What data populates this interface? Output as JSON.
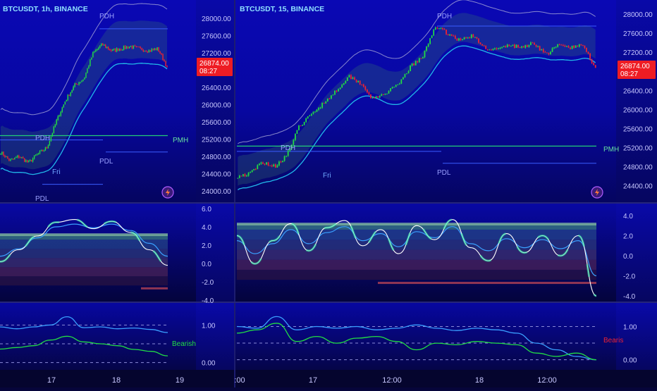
{
  "colors": {
    "background_top": "#0a08a8",
    "background_bottom": "#05053a",
    "bull": "#22dd44",
    "bear": "#ee2233",
    "basis": "#22b8e8",
    "guide": "#3a5dff",
    "pmh": "#22cc77",
    "label": "#c8c8ff",
    "price_badge": "#ee1c24"
  },
  "panels": [
    {
      "id": "left",
      "symbol_label": "BTCUSDT, 1h, BINANCE",
      "price_badge": {
        "price": "26874.00",
        "countdown": "08:27"
      },
      "price_axis": {
        "ticks": [
          "28000.00",
          "27600.00",
          "27200.00",
          "26800.00",
          "26400.00",
          "26000.00",
          "25600.00",
          "25200.00",
          "24800.00",
          "24400.00",
          "24000.00"
        ]
      },
      "annotations": {
        "pdh": "PDH",
        "pmh": "PMH",
        "pdl_top": "PDL",
        "pdl_bottom": "PDL",
        "day": "Fri"
      },
      "oscillator_axis": {
        "ticks": [
          "6.0",
          "4.0",
          "2.0",
          "0.0",
          "-2.0",
          "-4.0"
        ]
      },
      "ratio_axis": {
        "ticks": [
          "1.00",
          "0.00"
        ]
      },
      "ratio_label": "Bearish",
      "time_axis": {
        "ticks": [
          "17",
          "18",
          "19"
        ]
      },
      "icon": "lightning-icon"
    },
    {
      "id": "right",
      "symbol_label": "BTCUSDT, 15, BINANCE",
      "price_badge": {
        "price": "26874.00",
        "countdown": "08:27"
      },
      "price_axis": {
        "ticks": [
          "28000.00",
          "27600.00",
          "27200.00",
          "26800.00",
          "26400.00",
          "26000.00",
          "25600.00",
          "25200.00",
          "24800.00",
          "24400.00"
        ]
      },
      "annotations": {
        "pdh_top": "PDH",
        "pdh_mid": "PDH",
        "pmh": "PMH",
        "pdl": "PDL",
        "day": "Fri"
      },
      "oscillator_axis": {
        "ticks": [
          "4.0",
          "2.0",
          "0.0",
          "-2.0",
          "-4.0"
        ]
      },
      "ratio_axis": {
        "ticks": [
          "1.00",
          "0.00"
        ]
      },
      "ratio_label": "Bearis",
      "time_axis": {
        "ticks": [
          ":00",
          "17",
          "12:00",
          "18",
          "12:00"
        ]
      },
      "icon": "lightning-icon"
    }
  ],
  "chart_data": [
    {
      "type": "candlestick",
      "title": "BTCUSDT, 1h, BINANCE",
      "ylim": [
        23800,
        28200
      ],
      "series": [
        {
          "name": "price (close, approx.)",
          "keypoints": [
            24900,
            24700,
            24800,
            24650,
            24850,
            25000,
            25600,
            26100,
            26450,
            26600,
            27200,
            27400,
            27250,
            27300,
            27350,
            27300,
            27250,
            27300,
            26874
          ]
        }
      ],
      "levels": {
        "PDH": 27760,
        "PMH": 25280,
        "PDL_upper": 25180,
        "PDL_upper_right": 24900,
        "PDL_lower": 24150
      },
      "last_price": 26874
    },
    {
      "type": "candlestick",
      "title": "BTCUSDT, 15, BINANCE",
      "ylim": [
        24200,
        28150
      ],
      "series": [
        {
          "name": "price (close, approx.)",
          "keypoints": [
            24600,
            24650,
            24900,
            24800,
            25050,
            25650,
            25900,
            26150,
            26400,
            26700,
            26550,
            26200,
            26350,
            26500,
            26900,
            27100,
            27750,
            27600,
            27450,
            27550,
            27300,
            27250,
            27350,
            27300,
            27400,
            27150,
            27350,
            27300,
            27350,
            26874
          ]
        }
      ],
      "levels": {
        "PDH": 27750,
        "PMH": 25230,
        "PDH_mid": 25120,
        "PDL": 24870
      },
      "last_price": 26874
    },
    {
      "type": "line",
      "title": "",
      "ylim": [
        -4,
        6
      ],
      "series": [
        {
          "name": "",
          "values": [
            0.2,
            1.5,
            3.0,
            4.5,
            4.8,
            3.8,
            4.6,
            3.4,
            1.5,
            -0.2
          ]
        },
        {
          "name": "",
          "values": [
            0.8,
            1.6,
            2.8,
            4.0,
            4.3,
            3.9,
            4.3,
            3.6,
            2.2,
            0.8
          ]
        }
      ]
    },
    {
      "type": "line",
      "title": "",
      "ylim": [
        -4,
        4
      ],
      "series": [
        {
          "name": "",
          "values": [
            2.0,
            -0.8,
            1.5,
            3.2,
            0.5,
            2.8,
            3.5,
            1.0,
            2.6,
            0.2,
            3.0,
            1.6,
            3.6,
            0.8,
            -0.5,
            2.2,
            0.3,
            2.0,
            0.0,
            2.0,
            -4.0
          ]
        },
        {
          "name": "",
          "values": [
            1.5,
            0.2,
            1.2,
            2.6,
            1.2,
            2.3,
            2.9,
            1.5,
            2.2,
            0.9,
            2.4,
            1.8,
            2.9,
            1.2,
            0.5,
            1.7,
            0.8,
            1.6,
            0.7,
            1.5,
            -2.0
          ]
        }
      ]
    },
    {
      "type": "line",
      "title": "",
      "ylim": [
        -0.1,
        1.4
      ],
      "series": [
        {
          "name": "",
          "values": [
            0.95,
            0.9,
            0.95,
            1.0,
            1.22,
            0.93,
            0.95,
            0.9,
            0.92,
            0.88,
            0.8
          ]
        },
        {
          "name": "",
          "values": [
            0.36,
            0.4,
            0.45,
            0.6,
            0.7,
            0.55,
            0.5,
            0.45,
            0.35,
            0.3,
            0.18
          ]
        }
      ]
    },
    {
      "type": "line",
      "title": "",
      "ylim": [
        -0.2,
        1.5
      ],
      "series": [
        {
          "name": "",
          "values": [
            1.0,
            0.95,
            1.3,
            0.9,
            1.0,
            0.95,
            1.0,
            0.9,
            0.95,
            1.05,
            0.95,
            0.88,
            0.95,
            0.9,
            0.8,
            0.5,
            0.3,
            0.1,
            0.0
          ]
        },
        {
          "name": "",
          "values": [
            0.8,
            0.9,
            1.1,
            0.55,
            0.7,
            0.5,
            0.65,
            0.7,
            0.55,
            0.3,
            0.5,
            0.45,
            0.55,
            0.5,
            0.45,
            0.2,
            0.1,
            0.2,
            0.0
          ]
        }
      ]
    }
  ]
}
